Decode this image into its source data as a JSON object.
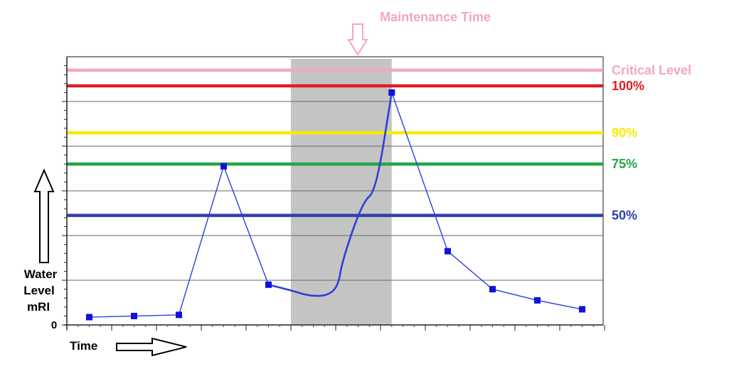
{
  "chart_data": {
    "type": "line",
    "annotation": "Maintenance Time",
    "ylabel_lines": [
      "Water",
      "Level",
      "mRI"
    ],
    "xlabel": "Time",
    "y_zero_label": "0",
    "ylim": [
      0,
      120
    ],
    "xlim": [
      0,
      12
    ],
    "grid": true,
    "colors": {
      "series": "#2e3fd6",
      "marker": "#1111dd",
      "maintenance_band": "#c4c4c4",
      "annotation": "#f4a6bf"
    },
    "maintenance_period": [
      5,
      7.25
    ],
    "reference_lines": [
      {
        "label": "Critical Level",
        "value": 114,
        "color": "#f4a6bf"
      },
      {
        "label": "100%",
        "value": 107,
        "color": "#dd1e24"
      },
      {
        "label": "90%",
        "value": 86,
        "color": "#f5ec00"
      },
      {
        "label": "75%",
        "value": 72,
        "color": "#23a647"
      },
      {
        "label": "50%",
        "value": 49,
        "color": "#2e3fae"
      }
    ],
    "series": [
      {
        "points": [
          {
            "x": 0.5,
            "y": 3.5
          },
          {
            "x": 1.5,
            "y": 4
          },
          {
            "x": 2.5,
            "y": 4.5
          },
          {
            "x": 3.5,
            "y": 71
          },
          {
            "x": 4.5,
            "y": 18
          },
          {
            "x": 7.25,
            "y": 104
          },
          {
            "x": 8.5,
            "y": 33
          },
          {
            "x": 9.5,
            "y": 16
          },
          {
            "x": 10.5,
            "y": 11
          },
          {
            "x": 11.5,
            "y": 7
          }
        ],
        "maintenance_trace": [
          {
            "x": 4.5,
            "y": 18
          },
          {
            "x": 5.0,
            "y": 15.5
          },
          {
            "x": 5.4,
            "y": 13
          },
          {
            "x": 5.8,
            "y": 13
          },
          {
            "x": 6.05,
            "y": 17
          },
          {
            "x": 6.15,
            "y": 29
          },
          {
            "x": 6.6,
            "y": 55
          },
          {
            "x": 6.9,
            "y": 60
          },
          {
            "x": 7.25,
            "y": 104
          }
        ]
      }
    ]
  }
}
